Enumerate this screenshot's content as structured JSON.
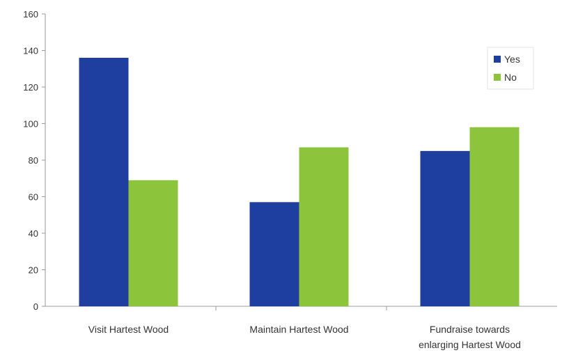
{
  "chart_data": {
    "type": "bar",
    "title": "",
    "xlabel": "",
    "ylabel": "",
    "categories": [
      [
        "Visit Hartest Wood"
      ],
      [
        "Maintain Hartest Wood"
      ],
      [
        "Fundraise towards",
        "enlarging Hartest Wood"
      ]
    ],
    "series": [
      {
        "name": "Yes",
        "color": "#1f3fa0",
        "values": [
          136,
          57,
          85
        ]
      },
      {
        "name": "No",
        "color": "#8cc43c",
        "values": [
          69,
          87,
          98
        ]
      }
    ],
    "ylim": [
      0,
      160
    ],
    "yticks": [
      0,
      20,
      40,
      60,
      80,
      100,
      120,
      140,
      160
    ],
    "grid": false,
    "legend_position": "top-right"
  }
}
